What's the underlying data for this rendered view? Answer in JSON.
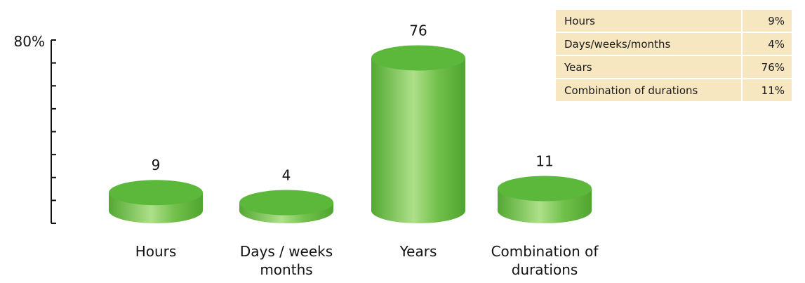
{
  "chart_data": {
    "type": "bar",
    "style": "3d-cylinder",
    "categories": [
      "Hours",
      "Days / weeks\nmonths",
      "Years",
      "Combination of\ndurations"
    ],
    "values": [
      9,
      4,
      76,
      11
    ],
    "data_labels": [
      "9",
      "4",
      "76",
      "11"
    ],
    "ylim": [
      0,
      80
    ],
    "y_tick_label": "80%",
    "color": "#5cb83a",
    "legend_table": {
      "rows": [
        {
          "category": "Hours",
          "value": "9%"
        },
        {
          "category": "Days/weeks/months",
          "value": "4%"
        },
        {
          "category": "Years",
          "value": "76%"
        },
        {
          "category": "Combination of durations",
          "value": "11%"
        }
      ],
      "placement": "top-right",
      "background": "#f6e7c0"
    }
  }
}
